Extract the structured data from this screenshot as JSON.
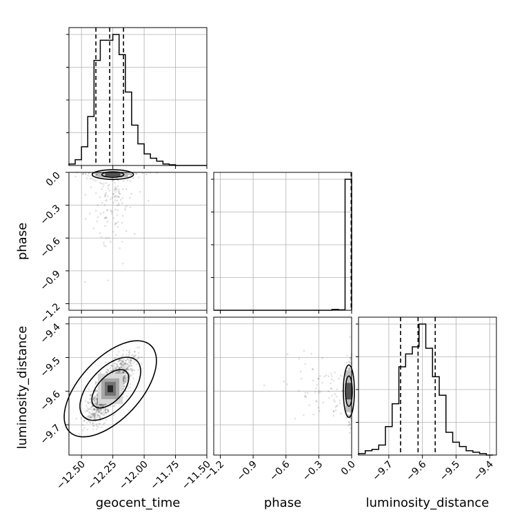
{
  "chart_data": {
    "type": "corner",
    "parameters": [
      "geocent_time",
      "phase",
      "luminosity_distance"
    ],
    "axes": {
      "geocent_time": {
        "label": "geocent_time",
        "range": [
          -12.6,
          -11.5
        ],
        "ticks": [
          -12.5,
          -12.25,
          -12.0,
          -11.75,
          -11.5
        ],
        "tick_labels": [
          "−12.50",
          "−12.25",
          "−12.00",
          "−11.75",
          "−11.50"
        ]
      },
      "phase": {
        "label": "phase",
        "range": [
          -1.26,
          0.0
        ],
        "ticks": [
          -1.2,
          -0.9,
          -0.6,
          -0.3,
          0.0
        ],
        "tick_labels": [
          "−1.2",
          "−0.9",
          "−0.6",
          "−0.3",
          "0.0"
        ]
      },
      "luminosity_distance": {
        "label": "luminosity_distance",
        "range": [
          -9.79,
          -9.38
        ],
        "ticks": [
          -9.7,
          -9.6,
          -9.5,
          -9.4
        ],
        "tick_labels": [
          "−9.7",
          "−9.6",
          "−9.5",
          "−9.4"
        ]
      }
    },
    "histograms": {
      "geocent_time": {
        "edges": [
          -12.6,
          -12.55,
          -12.5,
          -12.45,
          -12.4,
          -12.35,
          -12.3,
          -12.25,
          -12.2,
          -12.15,
          -12.1,
          -12.05,
          -12.0,
          -11.95,
          -11.9,
          -11.85,
          -11.8,
          -11.75,
          -11.7,
          -11.65,
          -11.6,
          -11.55,
          -11.5
        ],
        "counts": [
          1,
          4,
          13,
          34,
          73,
          87,
          87,
          91,
          77,
          51,
          28,
          15,
          8,
          5,
          3,
          1,
          0.5,
          0,
          0,
          0,
          0,
          0
        ],
        "quantiles": [
          -12.385,
          -12.275,
          -12.165
        ]
      },
      "phase": {
        "edges": [
          -1.26,
          -1.2,
          -1.14,
          -1.08,
          -1.02,
          -0.96,
          -0.9,
          -0.84,
          -0.78,
          -0.72,
          -0.66,
          -0.6,
          -0.54,
          -0.48,
          -0.42,
          -0.36,
          -0.3,
          -0.24,
          -0.18,
          -0.12,
          -0.06,
          0.0
        ],
        "counts": [
          0,
          0,
          0,
          0,
          0,
          0,
          0,
          0,
          0,
          0,
          0,
          0,
          0,
          0,
          0,
          0,
          0,
          0,
          0.6,
          0.3,
          92
        ],
        "quantiles": [
          -0.004,
          -0.002,
          -0.001
        ]
      },
      "luminosity_distance": {
        "edges": [
          -9.79,
          -9.77,
          -9.75,
          -9.73,
          -9.71,
          -9.69,
          -9.67,
          -9.65,
          -9.63,
          -9.61,
          -9.59,
          -9.57,
          -9.55,
          -9.53,
          -9.51,
          -9.49,
          -9.47,
          -9.45,
          -9.43,
          -9.41,
          -9.39
        ],
        "counts": [
          1,
          3,
          4,
          7,
          20,
          36,
          62,
          71,
          76,
          92,
          75,
          55,
          42,
          16,
          9,
          6,
          3,
          2,
          1,
          0
        ],
        "quantiles": [
          -9.665,
          -9.613,
          -9.562
        ]
      }
    },
    "joint": [
      {
        "x": "geocent_time",
        "y": "phase",
        "density_center": [
          -12.25,
          -0.02
        ],
        "contour_levels": 2
      },
      {
        "x": "geocent_time",
        "y": "luminosity_distance",
        "density_center": [
          -12.27,
          -9.593
        ],
        "correlation": "positive",
        "contour_levels": 3
      },
      {
        "x": "phase",
        "y": "luminosity_distance",
        "density_center": [
          -0.01,
          -9.6
        ],
        "contour_levels": 2
      }
    ],
    "grid": true,
    "colors": {
      "lines": "#000000",
      "grid": "#b0b0b0",
      "points": "#7f7f7f"
    }
  }
}
